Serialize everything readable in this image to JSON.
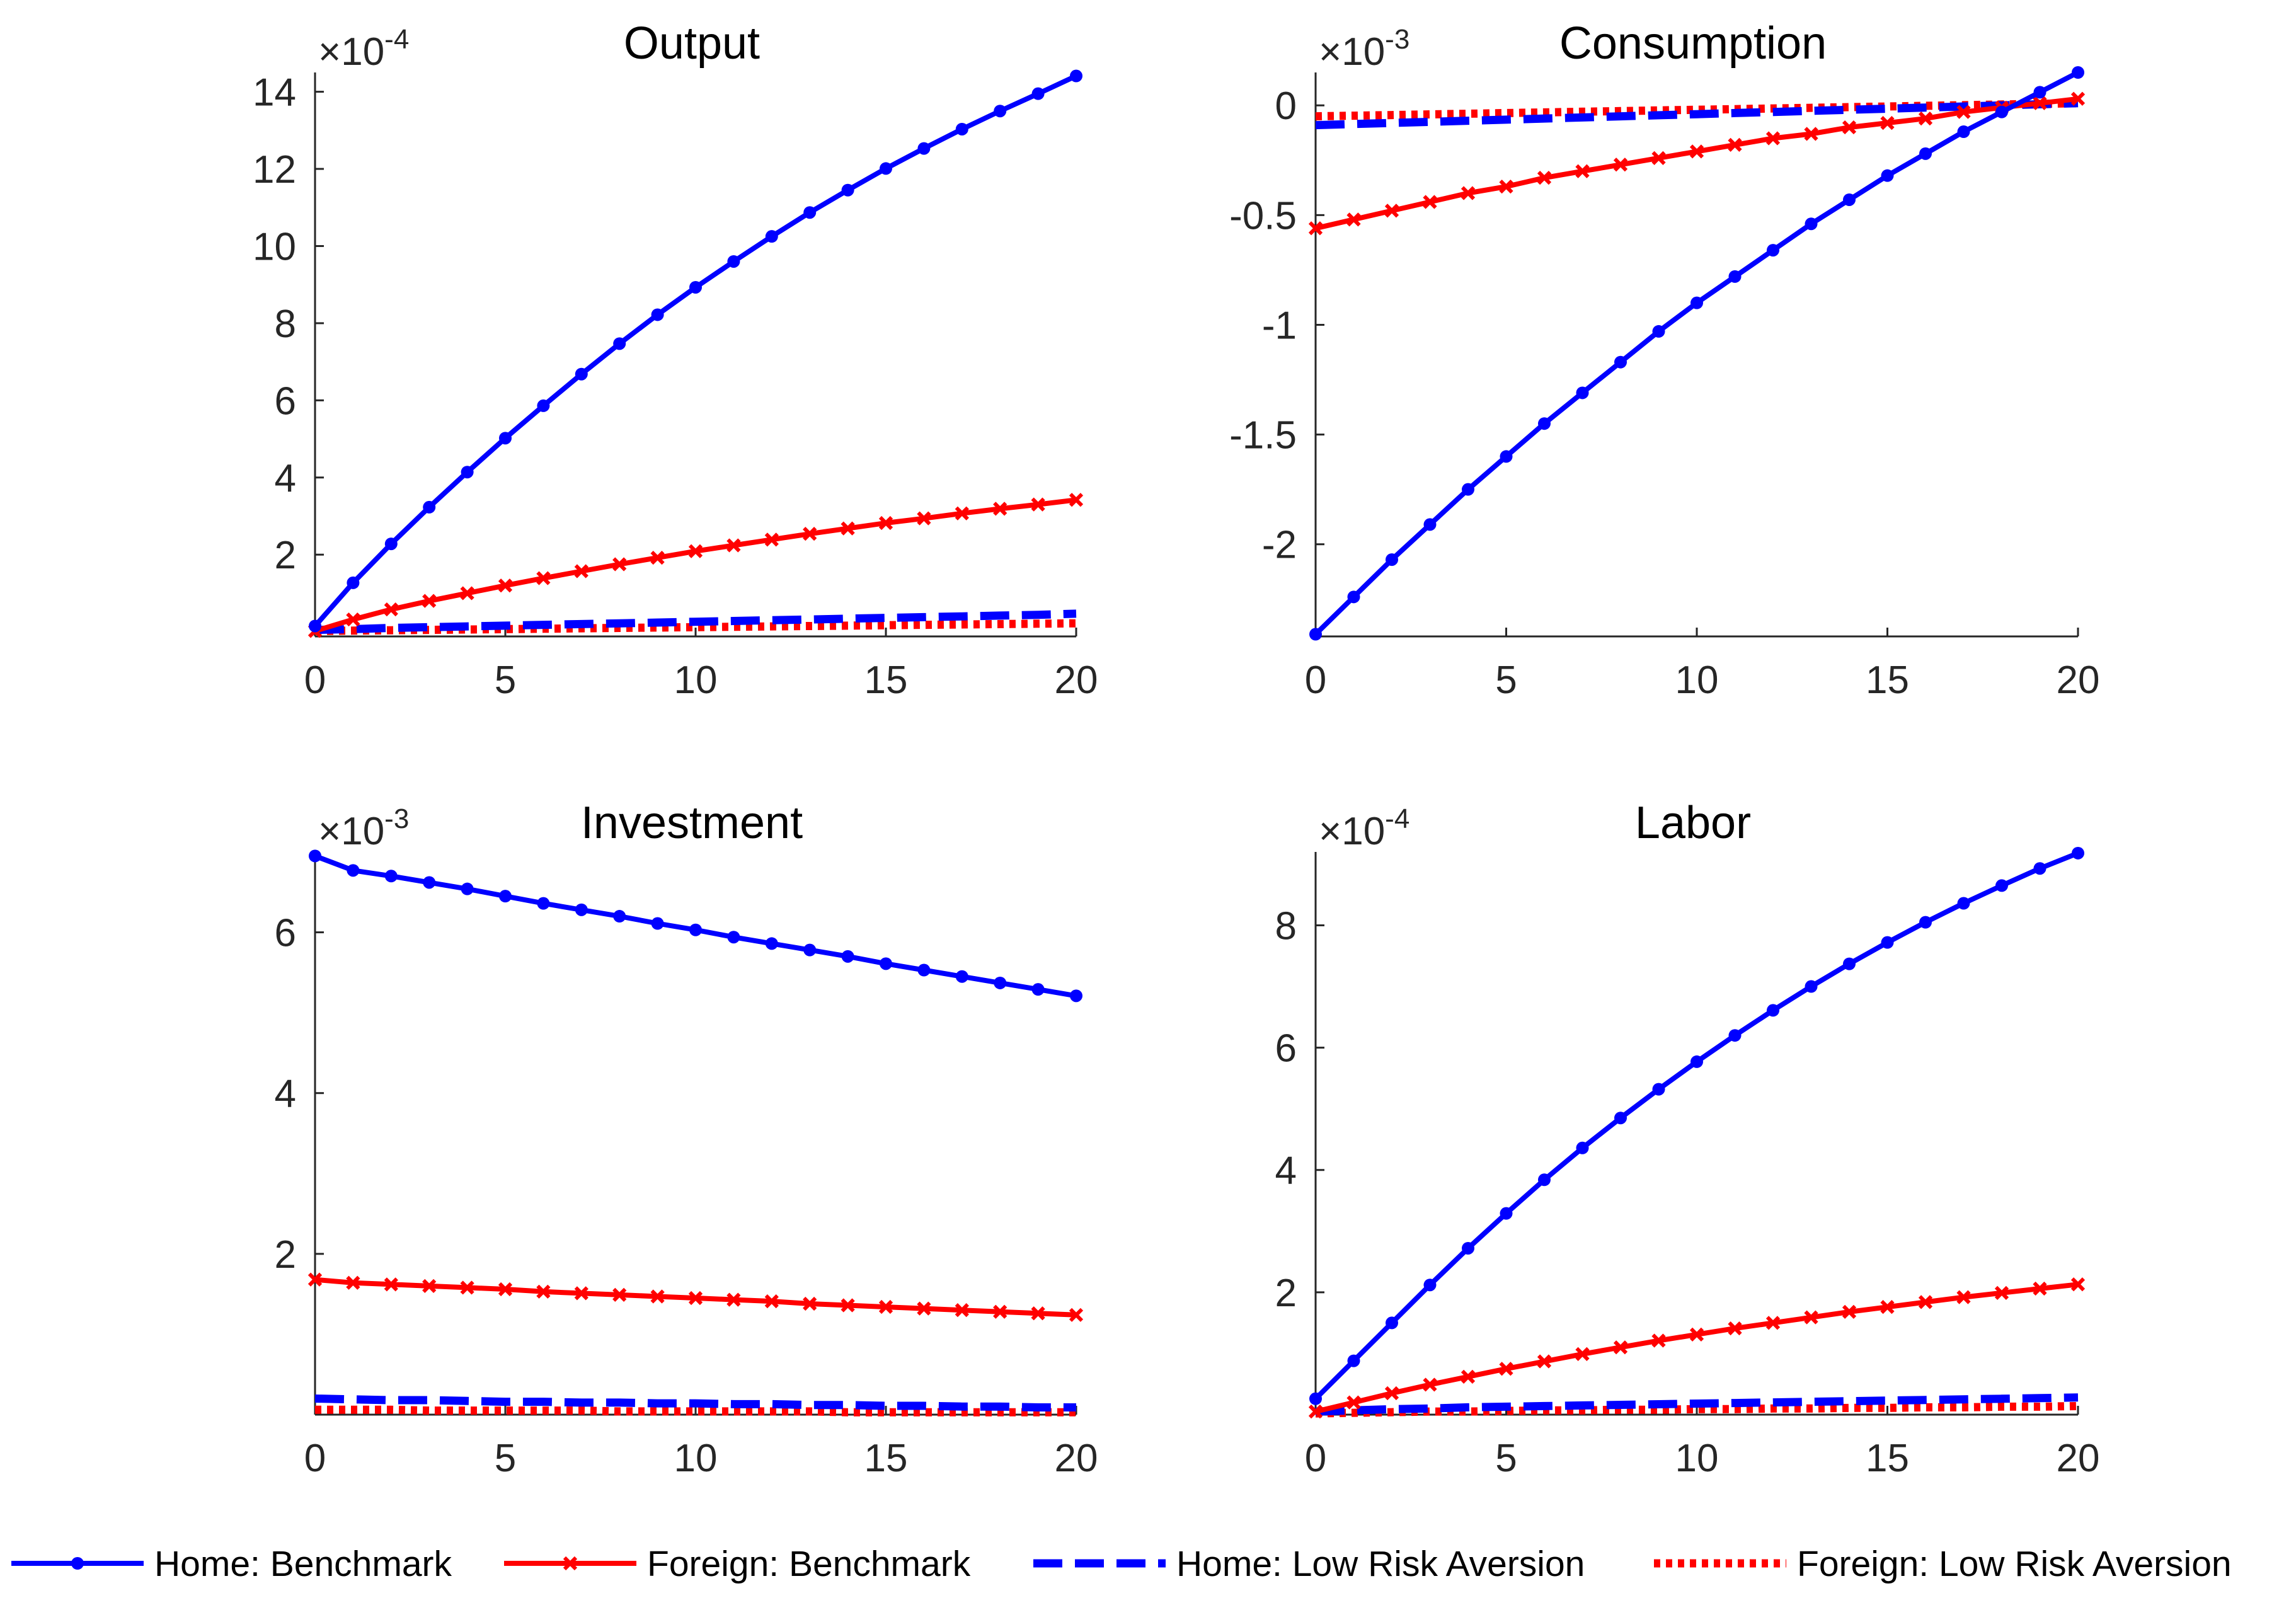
{
  "legend": {
    "items": [
      {
        "label": "Home: Benchmark",
        "color": "#0000ff",
        "style": "solid-dot"
      },
      {
        "label": "Foreign: Benchmark",
        "color": "#ff0000",
        "style": "solid-x"
      },
      {
        "label": "Home: Low Risk Aversion",
        "color": "#0000ff",
        "style": "dashed"
      },
      {
        "label": "Foreign: Low Risk Aversion",
        "color": "#ff0000",
        "style": "dotted"
      }
    ]
  },
  "chart_data": [
    {
      "type": "line",
      "title": "Output",
      "exponent": "-4",
      "xlim": [
        0,
        20
      ],
      "ylim": [
        -0.12,
        14.5
      ],
      "xticks": [
        0,
        5,
        10,
        15,
        20
      ],
      "yticks": [
        2,
        4,
        6,
        8,
        10,
        12,
        14
      ],
      "ytick_labels": [
        "2",
        "4",
        "6",
        "8",
        "10",
        "12",
        "14"
      ],
      "x": [
        0,
        1,
        2,
        3,
        4,
        5,
        6,
        7,
        8,
        9,
        10,
        11,
        12,
        13,
        14,
        15,
        16,
        17,
        18,
        19,
        20
      ],
      "series": [
        {
          "name": "Home: Benchmark",
          "values": [
            0.15,
            1.27,
            2.28,
            3.23,
            4.14,
            5.02,
            5.86,
            6.68,
            7.47,
            8.22,
            8.93,
            9.6,
            10.25,
            10.87,
            11.45,
            12.01,
            12.53,
            13.03,
            13.5,
            13.95,
            14.41
          ]
        },
        {
          "name": "Foreign: Benchmark",
          "values": [
            0.02,
            0.32,
            0.58,
            0.8,
            1.0,
            1.2,
            1.39,
            1.57,
            1.75,
            1.92,
            2.09,
            2.24,
            2.39,
            2.54,
            2.68,
            2.82,
            2.94,
            3.07,
            3.19,
            3.3,
            3.42
          ]
        },
        {
          "name": "Home: Low Risk Aversion",
          "values": [
            0.05,
            0.07,
            0.1,
            0.12,
            0.14,
            0.16,
            0.18,
            0.2,
            0.22,
            0.24,
            0.26,
            0.28,
            0.3,
            0.32,
            0.34,
            0.36,
            0.38,
            0.4,
            0.42,
            0.44,
            0.47
          ]
        },
        {
          "name": "Foreign: Low Risk Aversion",
          "values": [
            0.02,
            0.03,
            0.04,
            0.05,
            0.06,
            0.07,
            0.08,
            0.09,
            0.1,
            0.11,
            0.12,
            0.13,
            0.14,
            0.15,
            0.16,
            0.17,
            0.18,
            0.19,
            0.2,
            0.21,
            0.22
          ]
        }
      ]
    },
    {
      "type": "line",
      "title": "Consumption",
      "exponent": "-3",
      "xlim": [
        0,
        20
      ],
      "ylim": [
        -2.42,
        0.15
      ],
      "xticks": [
        0,
        5,
        10,
        15,
        20
      ],
      "yticks": [
        -2,
        -1.5,
        -1,
        -0.5,
        0
      ],
      "ytick_labels": [
        "-2",
        "-1.5",
        "-1",
        "-0.5",
        "0"
      ],
      "x": [
        0,
        1,
        2,
        3,
        4,
        5,
        6,
        7,
        8,
        9,
        10,
        11,
        12,
        13,
        14,
        15,
        16,
        17,
        18,
        19,
        20
      ],
      "series": [
        {
          "name": "Home: Benchmark",
          "values": [
            -2.41,
            -2.24,
            -2.07,
            -1.91,
            -1.75,
            -1.6,
            -1.45,
            -1.31,
            -1.17,
            -1.03,
            -0.9,
            -0.78,
            -0.66,
            -0.54,
            -0.43,
            -0.32,
            -0.22,
            -0.12,
            -0.03,
            0.06,
            0.15
          ]
        },
        {
          "name": "Foreign: Benchmark",
          "values": [
            -0.56,
            -0.52,
            -0.48,
            -0.44,
            -0.4,
            -0.37,
            -0.33,
            -0.3,
            -0.27,
            -0.24,
            -0.21,
            -0.18,
            -0.15,
            -0.13,
            -0.1,
            -0.08,
            -0.06,
            -0.03,
            -0.01,
            0.01,
            0.03
          ]
        },
        {
          "name": "Home: Low Risk Aversion",
          "values": [
            -0.09,
            -0.085,
            -0.08,
            -0.075,
            -0.07,
            -0.065,
            -0.06,
            -0.055,
            -0.05,
            -0.045,
            -0.04,
            -0.035,
            -0.03,
            -0.025,
            -0.02,
            -0.015,
            -0.01,
            -0.005,
            0.0,
            0.005,
            0.01
          ]
        },
        {
          "name": "Foreign: Low Risk Aversion",
          "values": [
            -0.05,
            -0.047,
            -0.044,
            -0.041,
            -0.038,
            -0.035,
            -0.032,
            -0.029,
            -0.026,
            -0.023,
            -0.02,
            -0.017,
            -0.014,
            -0.011,
            -0.008,
            -0.005,
            -0.002,
            0.001,
            0.004,
            0.007,
            0.01
          ]
        }
      ]
    },
    {
      "type": "line",
      "title": "Investment",
      "exponent": "-3",
      "xlim": [
        0,
        20
      ],
      "ylim": [
        0.0,
        7.0
      ],
      "xticks": [
        0,
        5,
        10,
        15,
        20
      ],
      "yticks": [
        2,
        4,
        6
      ],
      "ytick_labels": [
        "2",
        "4",
        "6"
      ],
      "x": [
        0,
        1,
        2,
        3,
        4,
        5,
        6,
        7,
        8,
        9,
        10,
        11,
        12,
        13,
        14,
        15,
        16,
        17,
        18,
        19,
        20
      ],
      "series": [
        {
          "name": "Home: Benchmark",
          "values": [
            6.95,
            6.77,
            6.7,
            6.62,
            6.54,
            6.45,
            6.36,
            6.28,
            6.2,
            6.11,
            6.03,
            5.94,
            5.86,
            5.78,
            5.7,
            5.61,
            5.53,
            5.45,
            5.37,
            5.29,
            5.21
          ]
        },
        {
          "name": "Foreign: Benchmark",
          "values": [
            1.68,
            1.64,
            1.62,
            1.6,
            1.58,
            1.56,
            1.53,
            1.51,
            1.49,
            1.47,
            1.45,
            1.43,
            1.41,
            1.38,
            1.36,
            1.34,
            1.32,
            1.3,
            1.28,
            1.26,
            1.24
          ]
        },
        {
          "name": "Home: Low Risk Aversion",
          "values": [
            0.2,
            0.19,
            0.18,
            0.18,
            0.17,
            0.16,
            0.16,
            0.15,
            0.15,
            0.14,
            0.14,
            0.13,
            0.13,
            0.12,
            0.12,
            0.11,
            0.11,
            0.1,
            0.1,
            0.09,
            0.09
          ]
        },
        {
          "name": "Foreign: Low Risk Aversion",
          "values": [
            0.06,
            0.06,
            0.06,
            0.05,
            0.05,
            0.05,
            0.05,
            0.05,
            0.04,
            0.04,
            0.04,
            0.04,
            0.04,
            0.04,
            0.03,
            0.03,
            0.03,
            0.03,
            0.03,
            0.03,
            0.03
          ]
        }
      ]
    },
    {
      "type": "line",
      "title": "Labor",
      "exponent": "-4",
      "xlim": [
        0,
        20
      ],
      "ylim": [
        0.0,
        9.2
      ],
      "xticks": [
        0,
        5,
        10,
        15,
        20
      ],
      "yticks": [
        2,
        4,
        6,
        8
      ],
      "ytick_labels": [
        "2",
        "4",
        "6",
        "8"
      ],
      "x": [
        0,
        1,
        2,
        3,
        4,
        5,
        6,
        7,
        8,
        9,
        10,
        11,
        12,
        13,
        14,
        15,
        16,
        17,
        18,
        19,
        20
      ],
      "series": [
        {
          "name": "Home: Benchmark",
          "values": [
            0.26,
            0.88,
            1.5,
            2.12,
            2.72,
            3.29,
            3.84,
            4.36,
            4.85,
            5.32,
            5.77,
            6.2,
            6.61,
            7.0,
            7.37,
            7.72,
            8.05,
            8.36,
            8.65,
            8.93,
            9.18
          ]
        },
        {
          "name": "Foreign: Benchmark",
          "values": [
            0.05,
            0.2,
            0.35,
            0.49,
            0.62,
            0.75,
            0.87,
            0.99,
            1.1,
            1.21,
            1.31,
            1.41,
            1.5,
            1.59,
            1.68,
            1.76,
            1.84,
            1.92,
            1.99,
            2.06,
            2.13
          ]
        },
        {
          "name": "Home: Low Risk Aversion",
          "values": [
            0.05,
            0.07,
            0.09,
            0.1,
            0.12,
            0.13,
            0.14,
            0.15,
            0.16,
            0.17,
            0.18,
            0.19,
            0.2,
            0.21,
            0.22,
            0.23,
            0.24,
            0.25,
            0.26,
            0.27,
            0.28
          ]
        },
        {
          "name": "Foreign: Low Risk Aversion",
          "values": [
            0.02,
            0.03,
            0.04,
            0.05,
            0.05,
            0.06,
            0.07,
            0.07,
            0.08,
            0.08,
            0.09,
            0.09,
            0.1,
            0.1,
            0.11,
            0.11,
            0.12,
            0.12,
            0.13,
            0.13,
            0.14
          ]
        }
      ]
    }
  ]
}
